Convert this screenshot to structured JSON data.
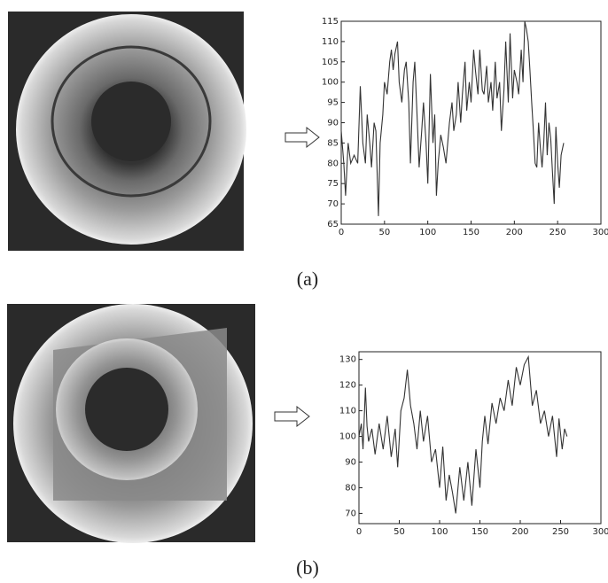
{
  "chart_data": [
    {
      "type": "line",
      "caption": "(a)",
      "xlim": [
        0,
        300
      ],
      "ylim": [
        65,
        115
      ],
      "xticks": [
        0,
        50,
        100,
        150,
        200,
        250,
        300
      ],
      "yticks": [
        65,
        70,
        75,
        80,
        85,
        90,
        95,
        100,
        105,
        110,
        115
      ],
      "x": [
        0,
        3,
        5,
        8,
        11,
        15,
        19,
        22,
        25,
        28,
        30,
        33,
        35,
        38,
        40,
        43,
        45,
        48,
        50,
        53,
        56,
        58,
        60,
        62,
        65,
        67,
        70,
        73,
        75,
        78,
        80,
        83,
        85,
        88,
        90,
        93,
        95,
        98,
        100,
        103,
        106,
        108,
        110,
        112,
        115,
        118,
        121,
        125,
        128,
        130,
        133,
        135,
        138,
        140,
        143,
        145,
        148,
        150,
        153,
        155,
        158,
        160,
        163,
        165,
        168,
        170,
        173,
        175,
        178,
        180,
        183,
        185,
        188,
        190,
        193,
        195,
        198,
        200,
        203,
        205,
        208,
        210,
        212,
        214,
        216,
        218,
        220,
        222,
        224,
        226,
        228,
        230,
        232,
        234,
        236,
        238,
        240,
        242,
        244,
        246,
        248,
        250,
        252,
        254,
        257
      ],
      "series": [
        {
          "color": "#333333",
          "values": [
            88,
            80,
            72,
            85,
            80,
            82,
            80,
            99,
            85,
            80,
            92,
            85,
            79,
            90,
            88,
            67,
            85,
            92,
            100,
            97,
            105,
            108,
            103,
            107,
            110,
            100,
            95,
            103,
            105,
            95,
            80,
            100,
            105,
            90,
            79,
            88,
            95,
            85,
            75,
            102,
            85,
            92,
            72,
            80,
            87,
            84,
            80,
            90,
            95,
            88,
            92,
            100,
            90,
            97,
            105,
            93,
            100,
            95,
            108,
            103,
            97,
            108,
            98,
            97,
            104,
            95,
            100,
            93,
            105,
            96,
            100,
            88,
            98,
            110,
            95,
            112,
            96,
            103,
            100,
            97,
            108,
            100,
            115,
            113,
            110,
            103,
            95,
            88,
            80,
            79,
            90,
            84,
            79,
            85,
            95,
            82,
            90,
            86,
            78,
            70,
            89,
            80,
            74,
            82,
            85
          ]
        }
      ]
    },
    {
      "type": "line",
      "caption": "(b)",
      "xlim": [
        0,
        300
      ],
      "ylim": [
        66,
        133
      ],
      "xticks": [
        0,
        50,
        100,
        150,
        200,
        250,
        300
      ],
      "yticks": [
        70,
        80,
        90,
        100,
        110,
        120,
        130
      ],
      "x": [
        0,
        3,
        5,
        8,
        10,
        12,
        16,
        20,
        25,
        30,
        35,
        40,
        45,
        48,
        52,
        56,
        60,
        64,
        68,
        72,
        76,
        80,
        85,
        90,
        95,
        100,
        104,
        108,
        112,
        116,
        120,
        125,
        130,
        135,
        140,
        145,
        150,
        153,
        156,
        160,
        165,
        170,
        175,
        180,
        185,
        190,
        195,
        200,
        205,
        210,
        215,
        220,
        225,
        230,
        235,
        240,
        245,
        248,
        252,
        255,
        258
      ],
      "series": [
        {
          "color": "#333333",
          "values": [
            100,
            105,
            95,
            119,
            104,
            98,
            103,
            93,
            105,
            95,
            108,
            92,
            103,
            88,
            110,
            115,
            126,
            112,
            105,
            95,
            110,
            98,
            108,
            90,
            95,
            80,
            96,
            75,
            85,
            78,
            70,
            88,
            75,
            90,
            73,
            95,
            80,
            98,
            108,
            97,
            113,
            105,
            115,
            110,
            122,
            112,
            127,
            120,
            128,
            131,
            112,
            118,
            105,
            110,
            100,
            108,
            92,
            107,
            95,
            103,
            100
          ]
        }
      ]
    }
  ]
}
